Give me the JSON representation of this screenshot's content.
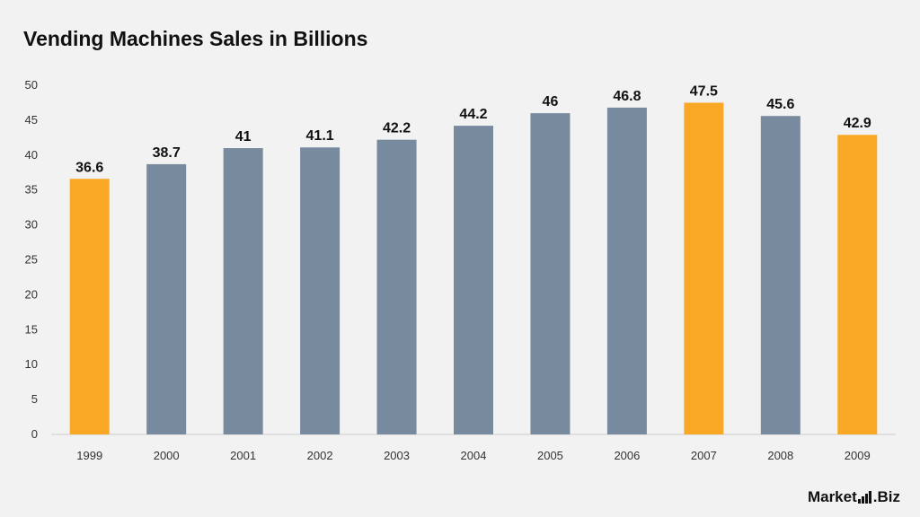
{
  "title": "Vending Machines Sales in Billions",
  "logo": {
    "text_left": "Market",
    "text_right": ".Biz"
  },
  "colors": {
    "highlight": "#f9a825",
    "default": "#778a9e",
    "axis": "#cccccc"
  },
  "chart_data": {
    "type": "bar",
    "title": "Vending Machines Sales in Billions",
    "xlabel": "",
    "ylabel": "",
    "categories": [
      "1999",
      "2000",
      "2001",
      "2002",
      "2003",
      "2004",
      "2005",
      "2006",
      "2007",
      "2008",
      "2009"
    ],
    "values": [
      36.6,
      38.7,
      41,
      41.1,
      42.2,
      44.2,
      46,
      46.8,
      47.5,
      45.6,
      42.9
    ],
    "value_labels": [
      "36.6",
      "38.7",
      "41",
      "41.1",
      "42.2",
      "44.2",
      "46",
      "46.8",
      "47.5",
      "45.6",
      "42.9"
    ],
    "highlighted": [
      "1999",
      "2007",
      "2009"
    ],
    "ylim": [
      0,
      50
    ],
    "yticks": [
      "0",
      "5",
      "10",
      "15",
      "20",
      "25",
      "30",
      "35",
      "40",
      "45",
      "50"
    ],
    "grid": false,
    "legend": "none"
  }
}
